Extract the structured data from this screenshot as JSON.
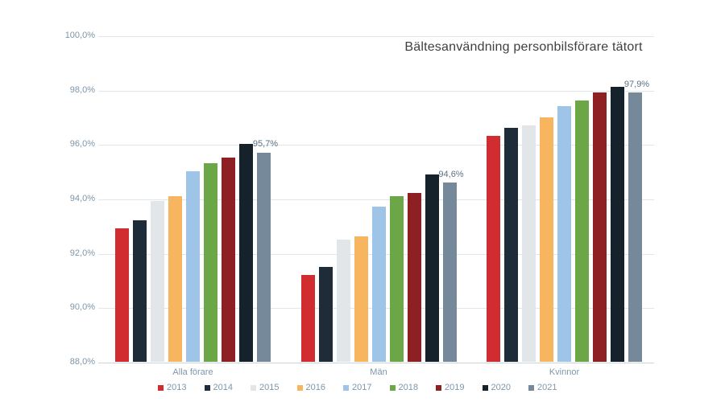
{
  "chart_data": {
    "type": "bar",
    "title": "Bältesanvändning personbilsförare tätort",
    "categories": [
      "Alla förare",
      "Män",
      "Kvinnor"
    ],
    "series": [
      {
        "name": "2013",
        "color": "#d12c30",
        "values": [
          92.9,
          91.2,
          96.3
        ]
      },
      {
        "name": "2014",
        "color": "#1d2c38",
        "values": [
          93.2,
          91.5,
          96.6
        ]
      },
      {
        "name": "2015",
        "color": "#e2e6e9",
        "values": [
          93.9,
          92.5,
          96.7
        ]
      },
      {
        "name": "2016",
        "color": "#f6b55e",
        "values": [
          94.1,
          92.6,
          97.0
        ]
      },
      {
        "name": "2017",
        "color": "#9ec4e8",
        "values": [
          95.0,
          93.7,
          97.4
        ]
      },
      {
        "name": "2018",
        "color": "#6ba747",
        "values": [
          95.3,
          94.1,
          97.6
        ]
      },
      {
        "name": "2019",
        "color": "#8e2023",
        "values": [
          95.5,
          94.2,
          97.9
        ]
      },
      {
        "name": "2020",
        "color": "#15222c",
        "values": [
          96.0,
          94.9,
          98.1
        ]
      },
      {
        "name": "2021",
        "color": "#76899b",
        "values": [
          95.7,
          94.6,
          97.9
        ]
      }
    ],
    "data_labels": [
      {
        "series": "2021",
        "category": "Alla förare",
        "text": "95,7%"
      },
      {
        "series": "2021",
        "category": "Män",
        "text": "94,6%"
      },
      {
        "series": "2021",
        "category": "Kvinnor",
        "text": "97,9%"
      }
    ],
    "y_axis": {
      "min": 88.0,
      "max": 100.0,
      "step": 2.0,
      "tick_labels": [
        "88,0%",
        "90,0%",
        "92,0%",
        "94,0%",
        "96,0%",
        "98,0%",
        "100,0%"
      ]
    },
    "ylim": [
      88,
      100
    ],
    "grid": true,
    "legend_position": "bottom",
    "colors": {
      "background": "#ffffff",
      "axis_text": "#7e96a9",
      "title_text": "#3f3f3f",
      "data_label_text": "#5b7386",
      "gridline": "#dfe6ec",
      "baseline": "#ccd5dc"
    }
  }
}
